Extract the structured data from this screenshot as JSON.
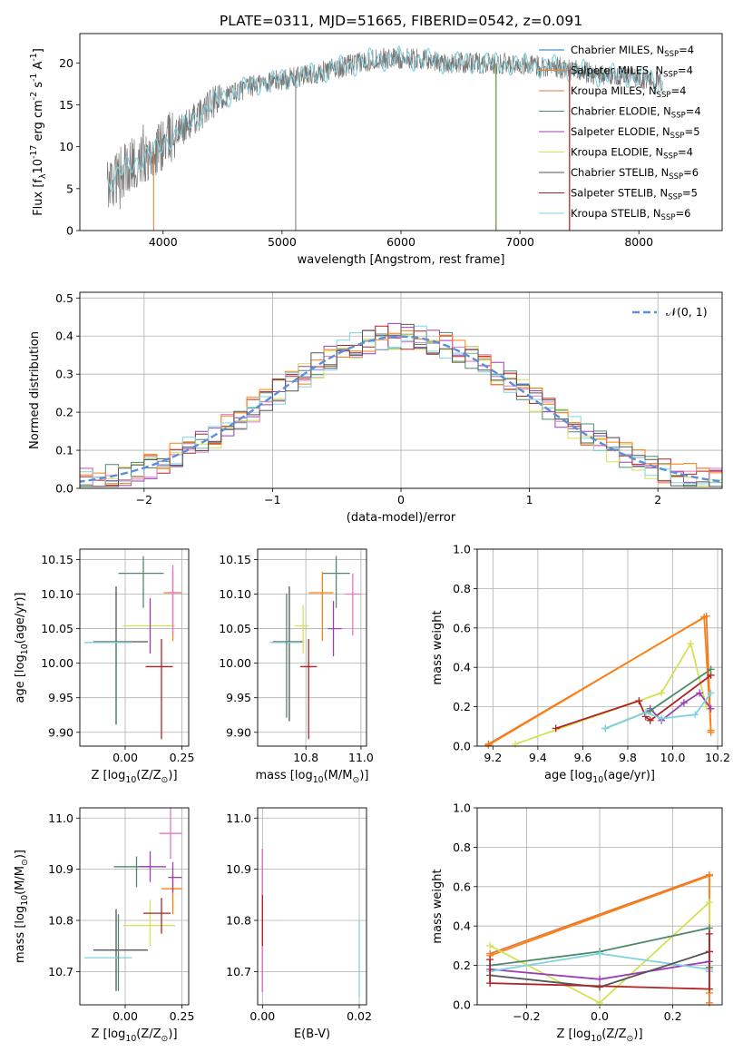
{
  "figure_title": "PLATE=0311, MJD=51665, FIBERID=0542, z=0.091",
  "colors": {
    "Chabrier MILES": "#1f77b4",
    "Salpeter MILES": "#ff7f0e",
    "Kroupa MILES": "#e07b39",
    "Chabrier ELODIE": "#4f8a6a",
    "Salpeter ELODIE": "#9b3fb5",
    "Kroupa ELODIE": "#d4e157",
    "Chabrier STELIB": "#555555",
    "Salpeter STELIB": "#b22222",
    "Kroupa STELIB": "#7fd3e0",
    "pink": "#e377c2",
    "gaussian": "#5b8fd9",
    "grid": "#b0b0b0"
  },
  "chart_data": [
    {
      "id": "spectrum",
      "type": "line",
      "title": "PLATE=0311, MJD=51665, FIBERID=0542, z=0.091",
      "xlabel": "wavelength [Angstrom, rest frame]",
      "ylabel": "Flux [f$_\\lambda$10$^{-17}$ erg cm$^{-2}$ s$^{-1}$ A$^{-1}$]",
      "xlim": [
        3300,
        8700
      ],
      "ylim": [
        0,
        23.5
      ],
      "xticks": [
        4000,
        5000,
        6000,
        7000,
        8000
      ],
      "yticks": [
        0,
        5,
        10,
        15,
        20
      ],
      "grid": false,
      "legend_position": "right",
      "legend": [
        {
          "label": "Chabrier MILES, N",
          "sub": "SSP",
          "suffix": "=4"
        },
        {
          "label": "Salpeter MILES, N",
          "sub": "SSP",
          "suffix": "=4"
        },
        {
          "label": "Kroupa MILES, N",
          "sub": "SSP",
          "suffix": "=4"
        },
        {
          "label": "Chabrier ELODIE, N",
          "sub": "SSP",
          "suffix": "=4"
        },
        {
          "label": "Salpeter ELODIE, N",
          "sub": "SSP",
          "suffix": "=5"
        },
        {
          "label": "Kroupa ELODIE, N",
          "sub": "SSP",
          "suffix": "=4"
        },
        {
          "label": "Chabrier STELIB, N",
          "sub": "SSP",
          "suffix": "=6"
        },
        {
          "label": "Salpeter STELIB, N",
          "sub": "SSP",
          "suffix": "=5"
        },
        {
          "label": "Kroupa STELIB, N",
          "sub": "SSP",
          "suffix": "=6"
        }
      ],
      "continuum": {
        "x": [
          3530,
          3700,
          3850,
          3950,
          4050,
          4200,
          4400,
          4600,
          4800,
          5000,
          5200,
          5500,
          5800,
          6100,
          6400,
          6700,
          7000,
          7300,
          7500,
          7700,
          7900,
          8100,
          8200
        ],
        "y": [
          5.5,
          7.5,
          9.0,
          9.5,
          11.0,
          12.5,
          15.0,
          16.5,
          17.5,
          18.0,
          18.5,
          19.5,
          20.5,
          20.5,
          20.0,
          20.0,
          19.8,
          19.5,
          19.0,
          18.5,
          18.5,
          18.0,
          17.5
        ]
      }
    },
    {
      "id": "residuals",
      "type": "histogram",
      "xlabel": "(data-model)/error",
      "ylabel": "Normed distribution",
      "xlim": [
        -2.5,
        2.5
      ],
      "ylim": [
        0,
        0.515
      ],
      "xticks": [
        -2,
        -1,
        0,
        1,
        2
      ],
      "yticks": [
        0.0,
        0.1,
        0.2,
        0.3,
        0.4,
        0.5
      ],
      "grid": true,
      "legend_position": "top-right",
      "legend_label": "𝒩(0, 1)",
      "bin_width": 0.1,
      "bin_start": -2.5
    },
    {
      "id": "age-vs-Z",
      "type": "scatter",
      "xlabel": "Z [log$_{10}$(Z/Z$_\\odot$)]",
      "ylabel": "age  [log$_{10}$(age/yr)]",
      "xlim": [
        -0.2,
        0.28
      ],
      "ylim": [
        9.88,
        10.165
      ],
      "xticks": [
        0.0,
        0.25
      ],
      "xticklabels": [
        "0.00",
        "0.25"
      ],
      "yticks": [
        9.9,
        9.95,
        10.0,
        10.05,
        10.1,
        10.15
      ],
      "yticklabels": [
        "9.90",
        "9.95",
        "10.00",
        "10.05",
        "10.10",
        "10.15"
      ],
      "grid": true
    },
    {
      "id": "age-vs-mass",
      "type": "scatter",
      "xlabel": "mass [log$_{10}$(M/M$_\\odot$)]",
      "ylabel": "",
      "xlim": [
        10.625,
        11.02
      ],
      "ylim": [
        9.88,
        10.165
      ],
      "xticks": [
        10.8,
        11.0
      ],
      "xticklabels": [
        "10.8",
        "11.0"
      ],
      "yticks": [
        9.9,
        9.95,
        10.0,
        10.05,
        10.1,
        10.15
      ],
      "yticklabels": [
        "9.90",
        "9.95",
        "10.00",
        "10.05",
        "10.10",
        "10.15"
      ],
      "grid": true
    },
    {
      "id": "weight-vs-age",
      "type": "line",
      "xlabel": "age  [log$_{10}$(age/yr)]",
      "ylabel": "mass weight",
      "xlim": [
        9.13,
        10.22
      ],
      "ylim": [
        0,
        1.0
      ],
      "xticks": [
        9.2,
        9.4,
        9.6,
        9.8,
        10.0,
        10.2
      ],
      "xticklabels": [
        "9.2",
        "9.4",
        "9.6",
        "9.8",
        "10.0",
        "10.2"
      ],
      "yticks": [
        0.0,
        0.2,
        0.4,
        0.6,
        0.8,
        1.0
      ],
      "yticklabels": [
        "0.0",
        "0.2",
        "0.4",
        "0.6",
        "0.8",
        "1.0"
      ],
      "grid": true,
      "series": [
        {
          "key": "Kroupa MILES",
          "x": [
            9.18,
            10.15,
            10.17
          ],
          "y": [
            0.01,
            0.66,
            0.07
          ]
        },
        {
          "key": "Salpeter MILES",
          "x": [
            9.18,
            10.14,
            10.17
          ],
          "y": [
            0.005,
            0.655,
            0.08
          ]
        },
        {
          "key": "Kroupa ELODIE",
          "x": [
            9.3,
            9.95,
            10.08,
            10.15
          ],
          "y": [
            0.01,
            0.27,
            0.52,
            0.2
          ]
        },
        {
          "key": "Salpeter STELIB",
          "x": [
            9.48,
            9.85,
            9.88,
            9.9,
            10.17
          ],
          "y": [
            0.09,
            0.23,
            0.15,
            0.13,
            0.36
          ]
        },
        {
          "key": "Salpeter ELODIE",
          "x": [
            9.9,
            9.95,
            10.05,
            10.12,
            10.17
          ],
          "y": [
            0.19,
            0.13,
            0.22,
            0.27,
            0.19
          ]
        },
        {
          "key": "Chabrier ELODIE",
          "x": [
            9.7,
            9.9,
            10.17
          ],
          "y": [
            0.09,
            0.18,
            0.39
          ]
        },
        {
          "key": "Kroupa STELIB",
          "x": [
            9.7,
            9.88,
            9.95,
            10.1,
            10.17
          ],
          "y": [
            0.09,
            0.17,
            0.14,
            0.16,
            0.27
          ]
        }
      ]
    },
    {
      "id": "mass-vs-Z",
      "type": "scatter",
      "xlabel": "Z [log$_{10}$(Z/Z$_\\odot$)]",
      "ylabel": "mass [log$_{10}$(M/M$_\\odot$)]",
      "xlim": [
        -0.2,
        0.28
      ],
      "ylim": [
        10.635,
        11.02
      ],
      "xticks": [
        0.0,
        0.25
      ],
      "xticklabels": [
        "0.00",
        "0.25"
      ],
      "yticks": [
        10.7,
        10.8,
        10.9,
        11.0
      ],
      "yticklabels": [
        "10.7",
        "10.8",
        "10.9",
        "11.0"
      ],
      "grid": true
    },
    {
      "id": "mass-vs-ebv",
      "type": "scatter",
      "xlabel": "E(B-V)",
      "ylabel": "",
      "xlim": [
        -0.001,
        0.0215
      ],
      "ylim": [
        10.635,
        11.02
      ],
      "xticks": [
        0.0,
        0.02
      ],
      "xticklabels": [
        "0.00",
        "0.02"
      ],
      "yticks": [
        10.7,
        10.8,
        10.9,
        11.0
      ],
      "yticklabels": [
        "10.7",
        "10.8",
        "10.9",
        "11.0"
      ],
      "grid": true
    },
    {
      "id": "weight-vs-Z",
      "type": "line",
      "xlabel": "Z [log$_{10}$(Z/Z$_\\odot$)]",
      "ylabel": "mass weight",
      "xlim": [
        -0.335,
        0.335
      ],
      "ylim": [
        0,
        1.0
      ],
      "xticks": [
        -0.2,
        0.0,
        0.2
      ],
      "xticklabels": [
        "−0.2",
        "0.0",
        "0.2"
      ],
      "yticks": [
        0.0,
        0.2,
        0.4,
        0.6,
        0.8,
        1.0
      ],
      "yticklabels": [
        "0.0",
        "0.2",
        "0.4",
        "0.6",
        "0.8",
        "1.0"
      ],
      "grid": true,
      "series": [
        {
          "key": "Kroupa MILES",
          "x": [
            -0.3,
            0.3,
            0.3
          ],
          "y": [
            0.26,
            0.66,
            0.01
          ]
        },
        {
          "key": "Salpeter MILES",
          "x": [
            -0.3,
            0.3,
            0.3
          ],
          "y": [
            0.25,
            0.655,
            0.06
          ]
        },
        {
          "key": "Kroupa ELODIE",
          "x": [
            -0.3,
            0.0,
            0.3,
            0.3
          ],
          "y": [
            0.3,
            0.01,
            0.52,
            0.19
          ]
        },
        {
          "key": "Chabrier ELODIE",
          "x": [
            -0.3,
            0.0,
            0.3,
            0.3
          ],
          "y": [
            0.2,
            0.27,
            0.39,
            0.19
          ]
        },
        {
          "key": "Salpeter ELODIE",
          "x": [
            -0.3,
            0.0,
            0.3,
            0.3
          ],
          "y": [
            0.18,
            0.13,
            0.22,
            0.17
          ]
        },
        {
          "key": "Kroupa STELIB",
          "x": [
            -0.3,
            0.0,
            0.3,
            0.3
          ],
          "y": [
            0.17,
            0.26,
            0.18,
            0.17
          ]
        },
        {
          "key": "Chabrier STELIB",
          "x": [
            -0.3,
            0.0,
            0.3
          ],
          "y": [
            0.15,
            0.09,
            0.27
          ]
        },
        {
          "key": "Salpeter STELIB",
          "x": [
            -0.3,
            -0.3,
            0.3,
            0.3,
            0.3
          ],
          "y": [
            0.23,
            0.11,
            0.08,
            0.27,
            0.36
          ]
        }
      ]
    }
  ]
}
